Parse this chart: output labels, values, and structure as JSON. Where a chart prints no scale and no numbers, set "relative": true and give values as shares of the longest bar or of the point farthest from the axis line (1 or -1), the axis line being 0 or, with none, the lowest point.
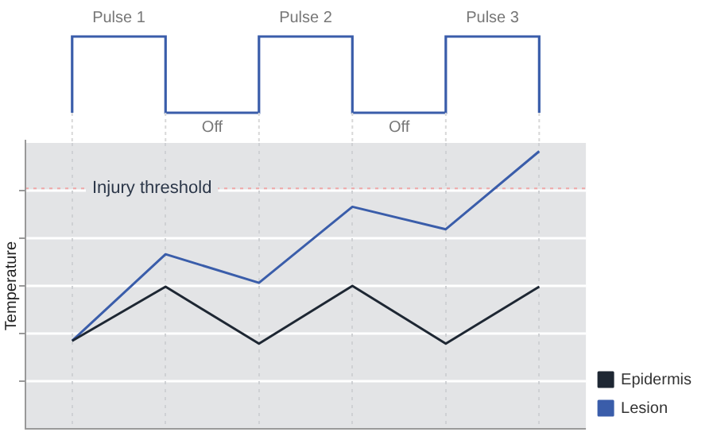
{
  "chart_data": {
    "type": "line",
    "relative": true,
    "ylabel": "Temperature",
    "categories": [
      null,
      null,
      null,
      null,
      null,
      null
    ],
    "series": [
      {
        "name": "Epidermis",
        "color": "#1e2733",
        "values": [
          0.317,
          0.512,
          0.307,
          0.515,
          0.307,
          0.512
        ]
      },
      {
        "name": "Lesion",
        "color": "#3a5daa",
        "values": [
          0.317,
          0.629,
          0.526,
          0.8,
          0.719,
          1
        ]
      }
    ],
    "ref_lines": [
      {
        "axis": "y",
        "value": 0.866,
        "label": "Injury threshold",
        "color": "#f0a8a8",
        "line_style": "dotted"
      }
    ],
    "annotations": [
      "Pulse 1",
      "Off",
      "Pulse 2",
      "Off",
      "Pulse 3"
    ],
    "grid": true,
    "legend": "bottom right",
    "marker": "none",
    "line_style": "solid"
  }
}
